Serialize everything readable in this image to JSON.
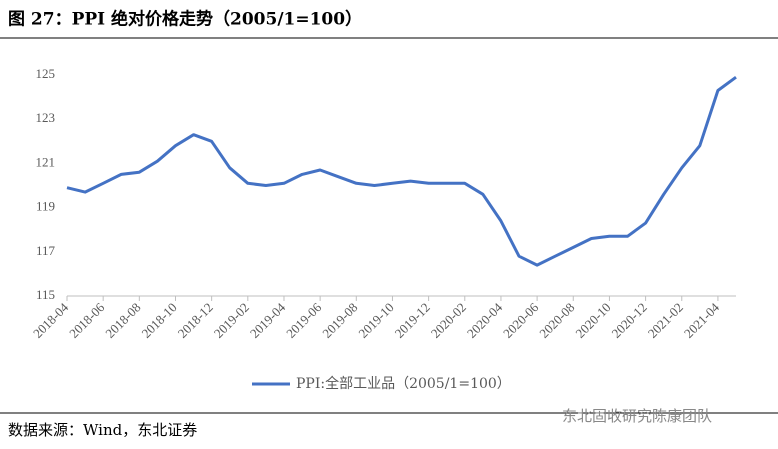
{
  "title": "图 27：PPI 绝对价格走势（2005/1=100）",
  "source": "数据来源：Wind，东北证券",
  "watermark": "东北固收研究陈康团队",
  "chart_data": {
    "type": "line",
    "categories": [
      "2018-04",
      null,
      "2018-06",
      null,
      "2018-08",
      null,
      "2018-10",
      null,
      "2018-12",
      null,
      "2019-02",
      null,
      "2019-04",
      null,
      "2019-06",
      null,
      "2019-08",
      null,
      "2019-10",
      null,
      "2019-12",
      null,
      "2020-02",
      null,
      "2020-04",
      null,
      "2020-06",
      null,
      "2020-08",
      null,
      "2020-10",
      null,
      "2020-12",
      null,
      "2021-02",
      null,
      "2021-04",
      null
    ],
    "series": [
      {
        "name": "PPI:全部工业品（2005/1=100）",
        "color": "#4472c4",
        "values": [
          119.9,
          119.7,
          120.1,
          120.5,
          120.6,
          121.1,
          121.8,
          122.3,
          122.0,
          120.8,
          120.1,
          120.0,
          120.1,
          120.5,
          120.7,
          120.4,
          120.1,
          120.0,
          120.1,
          120.2,
          120.1,
          120.1,
          120.1,
          119.6,
          118.4,
          116.8,
          116.4,
          116.8,
          117.2,
          117.6,
          117.7,
          117.7,
          118.3,
          119.6,
          120.8,
          121.8,
          124.3,
          124.9
        ]
      }
    ],
    "ylim": [
      115,
      125
    ],
    "yticks": [
      115,
      117,
      119,
      121,
      123,
      125
    ],
    "grid": false,
    "legend": "bottom"
  }
}
